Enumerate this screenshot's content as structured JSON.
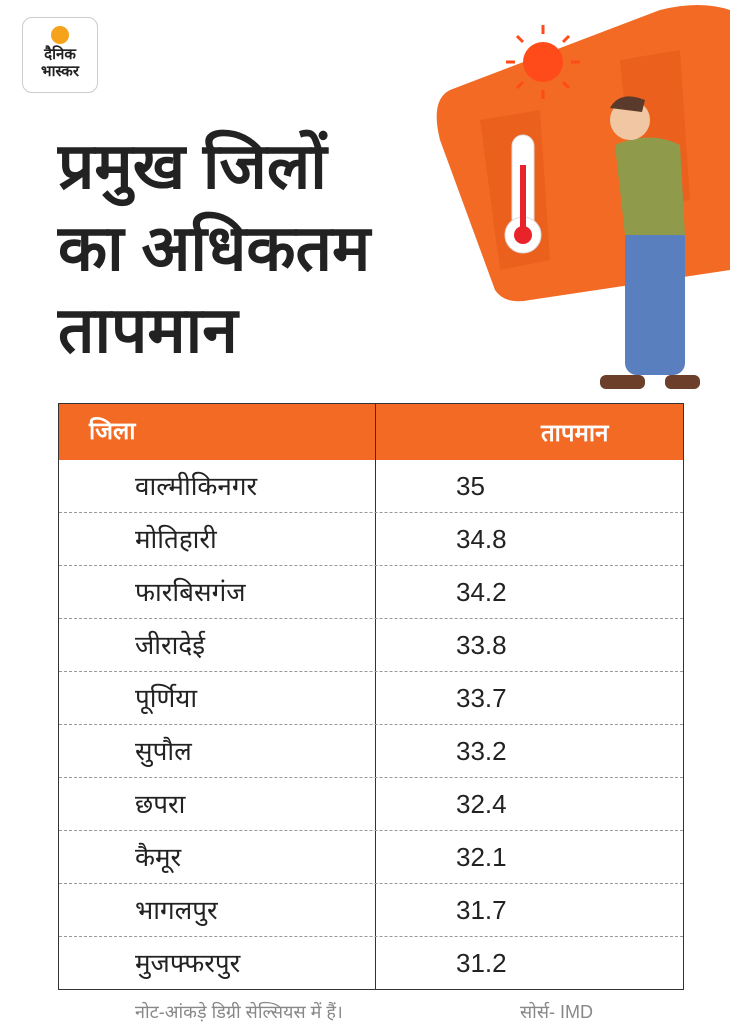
{
  "logo": {
    "lines": [
      "दैनिक",
      "भास्कर"
    ]
  },
  "title_lines": [
    "प्रमुख जिलों",
    "का अधिकतम",
    "तापमान"
  ],
  "table": {
    "header": [
      "जिला",
      "तापमान"
    ],
    "rows": [
      [
        "वाल्मीकिनगर",
        35
      ],
      [
        "मोतिहारी",
        34.8
      ],
      [
        "फारबिसगंज",
        34.2
      ],
      [
        "जीरादेई",
        33.8
      ],
      [
        "पूर्णिया",
        33.7
      ],
      [
        "सुपौल",
        33.2
      ],
      [
        "छपरा",
        32.4
      ],
      [
        "कैमूर",
        32.1
      ],
      [
        "भागलपुर",
        31.7
      ],
      [
        "मुजफ्फरपुर",
        31.2
      ]
    ]
  },
  "footer": {
    "note": "नोट-आंकड़े डिग्री सेल्सियस में हैं।",
    "source": "सोर्स- IMD"
  }
}
